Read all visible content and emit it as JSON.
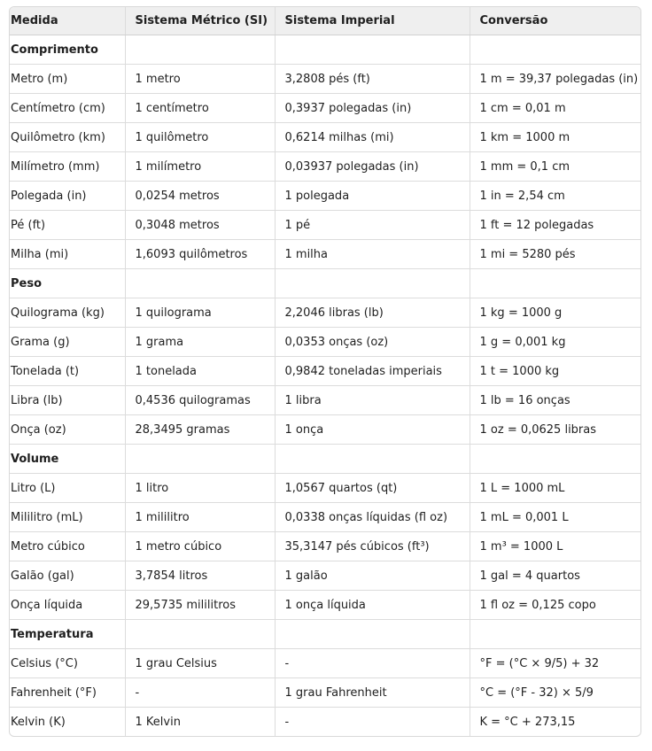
{
  "headers": [
    "Medida",
    "Sistema Métrico (SI)",
    "Sistema Imperial",
    "Conversão"
  ],
  "rows": [
    {
      "section": true,
      "cells": [
        "Comprimento",
        "",
        "",
        ""
      ]
    },
    {
      "cells": [
        "Metro (m)",
        "1 metro",
        "3,2808 pés (ft)",
        "1 m = 39,37 polegadas (in)"
      ]
    },
    {
      "cells": [
        "Centímetro (cm)",
        "1 centímetro",
        "0,3937 polegadas (in)",
        "1 cm = 0,01 m"
      ]
    },
    {
      "cells": [
        "Quilômetro (km)",
        "1 quilômetro",
        "0,6214 milhas (mi)",
        "1 km = 1000 m"
      ]
    },
    {
      "cells": [
        "Milímetro (mm)",
        "1 milímetro",
        "0,03937 polegadas (in)",
        "1 mm = 0,1 cm"
      ]
    },
    {
      "cells": [
        "Polegada (in)",
        "0,0254 metros",
        "1 polegada",
        "1 in = 2,54 cm"
      ]
    },
    {
      "cells": [
        "Pé (ft)",
        "0,3048 metros",
        "1 pé",
        "1 ft = 12 polegadas"
      ]
    },
    {
      "cells": [
        "Milha (mi)",
        "1,6093 quilômetros",
        "1 milha",
        "1 mi = 5280 pés"
      ]
    },
    {
      "section": true,
      "cells": [
        "Peso",
        "",
        "",
        ""
      ]
    },
    {
      "cells": [
        "Quilograma (kg)",
        "1 quilograma",
        "2,2046 libras (lb)",
        "1 kg = 1000 g"
      ]
    },
    {
      "cells": [
        "Grama (g)",
        "1 grama",
        "0,0353 onças (oz)",
        "1 g = 0,001 kg"
      ]
    },
    {
      "cells": [
        "Tonelada (t)",
        "1 tonelada",
        "0,9842 toneladas imperiais",
        "1 t = 1000 kg"
      ]
    },
    {
      "cells": [
        "Libra (lb)",
        "0,4536 quilogramas",
        "1 libra",
        "1 lb = 16 onças"
      ]
    },
    {
      "cells": [
        "Onça (oz)",
        "28,3495 gramas",
        "1 onça",
        "1 oz = 0,0625 libras"
      ]
    },
    {
      "section": true,
      "cells": [
        "Volume",
        "",
        "",
        ""
      ]
    },
    {
      "cells": [
        "Litro (L)",
        "1 litro",
        "1,0567 quartos (qt)",
        "1 L = 1000 mL"
      ]
    },
    {
      "cells": [
        "Mililitro (mL)",
        "1 mililitro",
        "0,0338 onças líquidas (fl oz)",
        "1 mL = 0,001 L"
      ]
    },
    {
      "cells": [
        "Metro cúbico",
        "1 metro cúbico",
        "35,3147 pés cúbicos (ft³)",
        "1 m³ = 1000 L"
      ]
    },
    {
      "cells": [
        "Galão (gal)",
        "3,7854 litros",
        "1 galão",
        "1 gal = 4 quartos"
      ]
    },
    {
      "cells": [
        "Onça líquida",
        "29,5735 mililitros",
        "1 onça líquida",
        "1 fl oz = 0,125 copo"
      ]
    },
    {
      "section": true,
      "cells": [
        "Temperatura",
        "",
        "",
        ""
      ]
    },
    {
      "cells": [
        "Celsius (°C)",
        "1 grau Celsius",
        "-",
        "°F = (°C × 9/5) + 32"
      ]
    },
    {
      "cells": [
        "Fahrenheit (°F)",
        "-",
        "1 grau Fahrenheit",
        "°C = (°F - 32) × 5/9"
      ]
    },
    {
      "cells": [
        "Kelvin (K)",
        "1 Kelvin",
        "-",
        "K = °C + 273,15"
      ]
    }
  ]
}
